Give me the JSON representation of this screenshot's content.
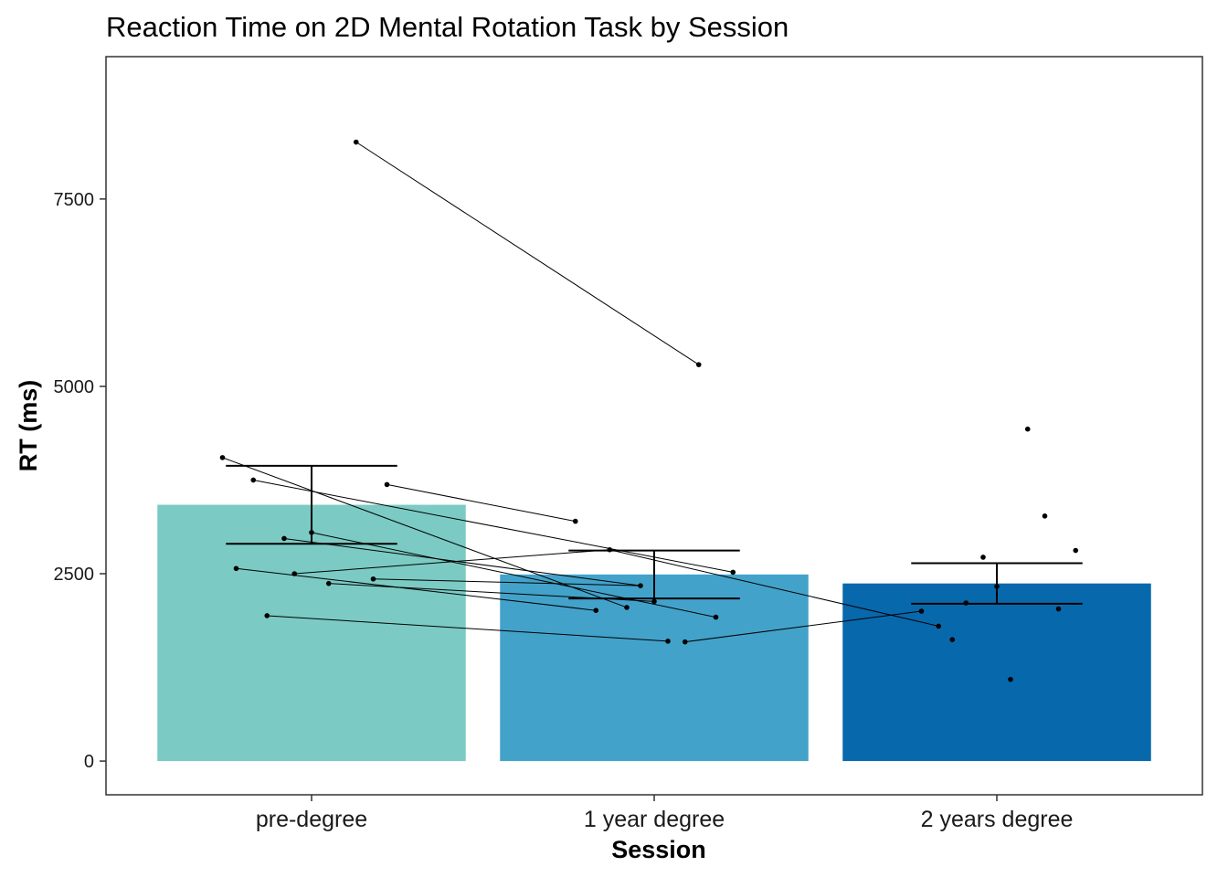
{
  "chart_data": {
    "type": "bar",
    "title": "Reaction Time on 2D Mental Rotation Task by Session",
    "xlabel": "Session",
    "ylabel": "RT (ms)",
    "categories": [
      "pre-degree",
      "1 year degree",
      "2 years degree"
    ],
    "values": [
      3420,
      2490,
      2370
    ],
    "error_bars": [
      {
        "low": 2900,
        "high": 3940
      },
      {
        "low": 2170,
        "high": 2810
      },
      {
        "low": 2100,
        "high": 2640
      }
    ],
    "bar_colors": [
      "#7BCBC4",
      "#43A2CA",
      "#0868AC"
    ],
    "ylim": [
      -450,
      9400
    ],
    "yticks": [
      0,
      2500,
      5000,
      7500
    ],
    "grid": false,
    "points": [
      {
        "x": 0.74,
        "y": 4050
      },
      {
        "x": 0.83,
        "y": 3750
      },
      {
        "x": 1.22,
        "y": 3690
      },
      {
        "x": 0.92,
        "y": 2970
      },
      {
        "x": 1.0,
        "y": 3050
      },
      {
        "x": 0.78,
        "y": 2570
      },
      {
        "x": 0.95,
        "y": 2500
      },
      {
        "x": 1.05,
        "y": 2370
      },
      {
        "x": 1.18,
        "y": 2430
      },
      {
        "x": 0.87,
        "y": 1940
      },
      {
        "x": 1.13,
        "y": 8260
      },
      {
        "x": 2.13,
        "y": 5290
      },
      {
        "x": 1.77,
        "y": 3200
      },
      {
        "x": 1.87,
        "y": 2820
      },
      {
        "x": 2.23,
        "y": 2520
      },
      {
        "x": 1.96,
        "y": 2340
      },
      {
        "x": 2.0,
        "y": 2130
      },
      {
        "x": 1.83,
        "y": 2010
      },
      {
        "x": 1.92,
        "y": 2050
      },
      {
        "x": 2.18,
        "y": 1920
      },
      {
        "x": 2.04,
        "y": 1600
      },
      {
        "x": 2.09,
        "y": 1590
      },
      {
        "x": 3.09,
        "y": 4430
      },
      {
        "x": 3.14,
        "y": 3270
      },
      {
        "x": 3.23,
        "y": 2810
      },
      {
        "x": 2.96,
        "y": 2720
      },
      {
        "x": 3.0,
        "y": 2330
      },
      {
        "x": 2.91,
        "y": 2110
      },
      {
        "x": 2.78,
        "y": 2000
      },
      {
        "x": 3.18,
        "y": 2030
      },
      {
        "x": 2.83,
        "y": 1800
      },
      {
        "x": 2.87,
        "y": 1620
      },
      {
        "x": 3.04,
        "y": 1090
      }
    ],
    "links": [
      [
        0,
        18
      ],
      [
        1,
        14
      ],
      [
        2,
        12
      ],
      [
        3,
        15
      ],
      [
        4,
        19
      ],
      [
        5,
        17
      ],
      [
        6,
        13
      ],
      [
        7,
        16
      ],
      [
        8,
        15
      ],
      [
        9,
        20
      ],
      [
        10,
        11
      ],
      [
        21,
        28
      ],
      [
        13,
        30
      ]
    ]
  }
}
